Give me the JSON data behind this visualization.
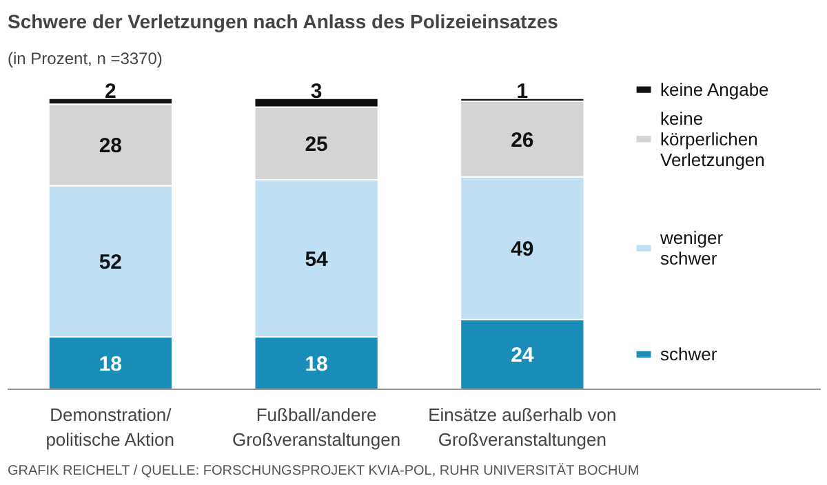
{
  "chart_data": {
    "type": "bar",
    "stacked": true,
    "title": "Schwere der Verletzungen nach Anlass des Polizeieinsatzes",
    "subtitle": "(in Prozent, n =3370)",
    "categories": [
      "Demonstration/ politische Aktion",
      "Fußball/andere Großveranstaltungen",
      "Einsätze außerhalb von Großveranstaltungen"
    ],
    "series": [
      {
        "name": "schwer",
        "color": "#1a8cb8",
        "values": [
          18,
          18,
          24
        ]
      },
      {
        "name": "weniger schwer",
        "color": "#bfe0f2",
        "values": [
          52,
          54,
          49
        ]
      },
      {
        "name": "keine körperlichen Verletzungen",
        "color": "#d4d4d4",
        "values": [
          28,
          25,
          26
        ]
      },
      {
        "name": "keine Angabe",
        "color": "#111111",
        "values": [
          2,
          3,
          1
        ]
      }
    ],
    "data_labels": true,
    "legend": "right",
    "grid": false,
    "annotations": [
      "GRAFIK REICHELT / QUELLE: FORSCHUNGSPROJEKT KVIA-POL, RUHR UNIVERSITÄT BOCHUM"
    ]
  }
}
